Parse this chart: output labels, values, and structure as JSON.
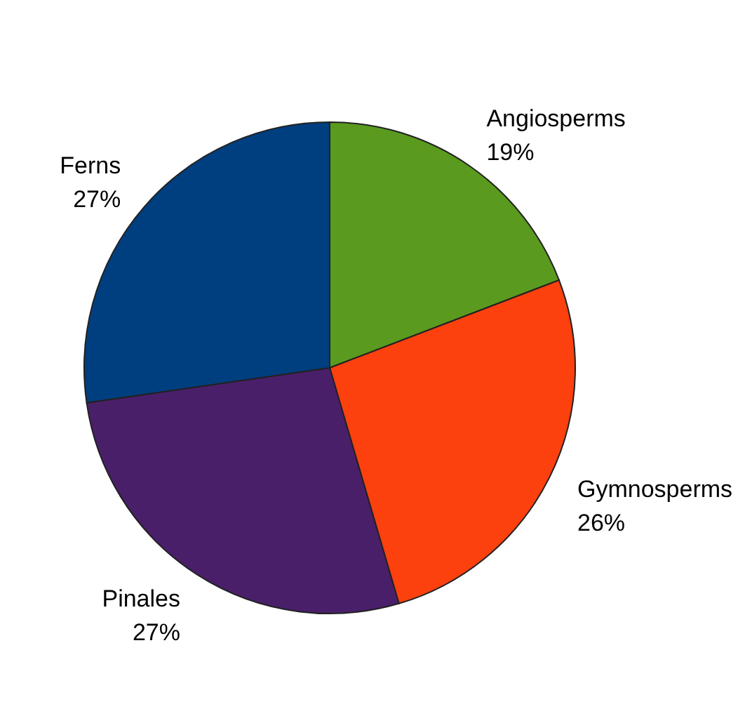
{
  "chart_data": {
    "type": "pie",
    "categories": [
      "Angiosperms",
      "Gymnosperms",
      "Pinales",
      "Ferns"
    ],
    "values": [
      19,
      26,
      27,
      27
    ],
    "value_labels": [
      "19%",
      "26%",
      "27%",
      "27%"
    ],
    "colors": [
      "#5a9a1e",
      "#fc400e",
      "#4a1f6a",
      "#003f7f"
    ]
  }
}
